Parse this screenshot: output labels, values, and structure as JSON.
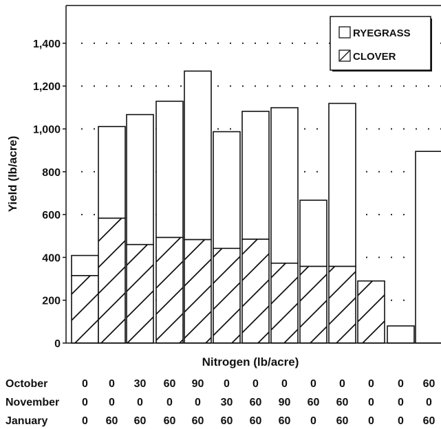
{
  "chart_data": {
    "type": "bar",
    "stacked": true,
    "ylabel": "Yield (lb/acre)",
    "xlabel": "Nitrogen (lb/acre)",
    "ylim": [
      0,
      1570
    ],
    "yticks": [
      0,
      200,
      400,
      600,
      800,
      1000,
      1200,
      1400
    ],
    "ytick_labels": [
      "0",
      "200",
      "400",
      "600",
      "800",
      "1,000",
      "1,200",
      "1,400"
    ],
    "grid": "dotted horizontal",
    "legend_position": "top-right",
    "series": [
      {
        "name": "CLOVER",
        "pattern": "hatched",
        "values": [
          315,
          583,
          460,
          493,
          483,
          442,
          485,
          373,
          358,
          358,
          290,
          0,
          0
        ]
      },
      {
        "name": "RYEGRASS",
        "pattern": "open",
        "values": [
          94,
          428,
          607,
          636,
          787,
          545,
          597,
          726,
          309,
          761,
          0,
          80,
          895
        ]
      }
    ],
    "totals": [
      409,
      1011,
      1067,
      1129,
      1270,
      987,
      1082,
      1099,
      667,
      1119,
      290,
      80,
      895
    ],
    "application_table": {
      "rows": [
        {
          "label": "October",
          "values": [
            "0",
            "0",
            "30",
            "60",
            "90",
            "0",
            "0",
            "0",
            "0",
            "0",
            "0",
            "0",
            "60"
          ]
        },
        {
          "label": "November",
          "values": [
            "0",
            "0",
            "0",
            "0",
            "0",
            "30",
            "60",
            "90",
            "60",
            "60",
            "0",
            "0",
            "0"
          ]
        },
        {
          "label": "January",
          "values": [
            "0",
            "60",
            "60",
            "60",
            "60",
            "60",
            "60",
            "60",
            "0",
            "60",
            "0",
            "0",
            "60"
          ]
        }
      ]
    }
  }
}
